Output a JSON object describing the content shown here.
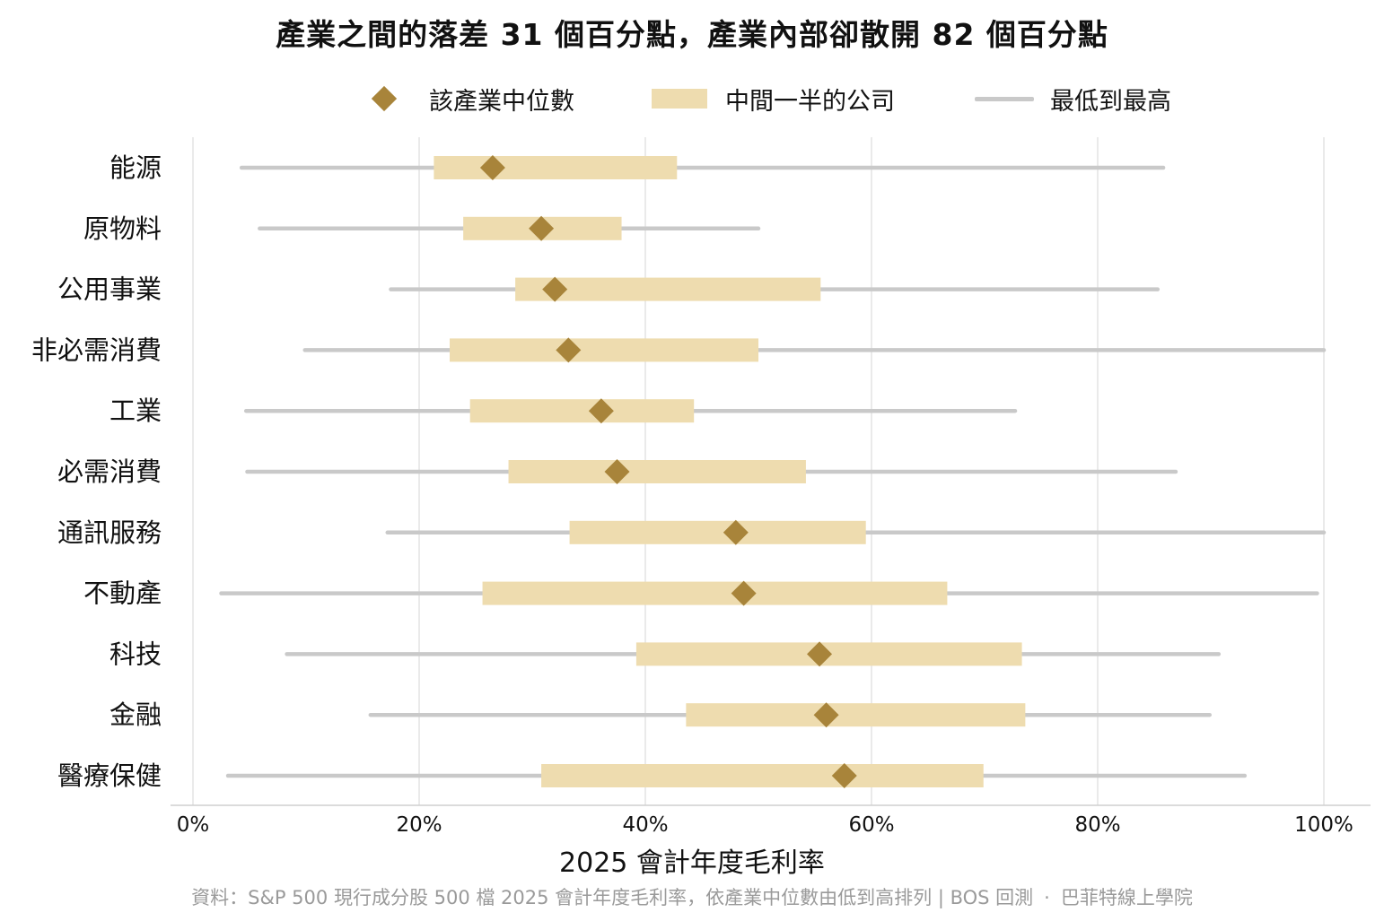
{
  "title": "產業之間的落差 31 個百分點，產業內部卻散開 82 個百分點",
  "legend": {
    "median": "該產業中位數",
    "iqr": "中間一半的公司",
    "range": "最低到最高"
  },
  "source": "資料：S&P 500 現行成分股 500 檔 2025 會計年度毛利率，依產業中位數由低到高排列 | BOS 回測",
  "brand": "巴菲特線上學院",
  "colors": {
    "median": "#A8843A",
    "iqr": "#EEDCAF",
    "range": "#C9C9C9",
    "grid": "#E3E3E3"
  },
  "chart_data": {
    "type": "range-dot",
    "title": "產業之間的落差 31 個百分點，產業內部卻散開 82 個百分點",
    "xlabel": "2025 會計年度毛利率",
    "xlim": [
      0,
      100
    ],
    "xticks": [
      "0%",
      "20%",
      "40%",
      "60%",
      "80%",
      "100%"
    ],
    "xtick_values": [
      0,
      20,
      40,
      60,
      80,
      100
    ],
    "grid": "vertical",
    "legend_position": "top",
    "categories": [
      "能源",
      "原物料",
      "公用事業",
      "非必需消費",
      "工業",
      "必需消費",
      "通訊服務",
      "不動產",
      "科技",
      "金融",
      "醫療保健"
    ],
    "series": [
      {
        "name": "最低到最高",
        "kind": "range",
        "low": [
          4.3,
          5.9,
          17.5,
          9.9,
          4.7,
          4.8,
          17.2,
          2.5,
          8.3,
          15.7,
          3.1
        ],
        "high": [
          85.8,
          50.0,
          85.3,
          100.0,
          72.7,
          86.9,
          100.0,
          99.4,
          90.7,
          89.9,
          93.0
        ]
      },
      {
        "name": "中間一半的公司",
        "kind": "iqr",
        "low": [
          21.3,
          23.9,
          28.5,
          22.7,
          24.5,
          27.9,
          33.3,
          25.6,
          39.2,
          43.6,
          30.8
        ],
        "high": [
          42.8,
          37.9,
          55.5,
          50.0,
          44.3,
          54.2,
          59.5,
          66.7,
          73.3,
          73.6,
          69.9
        ]
      },
      {
        "name": "該產業中位數",
        "kind": "median",
        "values": [
          26.5,
          30.8,
          32.0,
          33.2,
          36.1,
          37.5,
          48.0,
          48.7,
          55.4,
          56.0,
          57.6
        ]
      }
    ]
  }
}
